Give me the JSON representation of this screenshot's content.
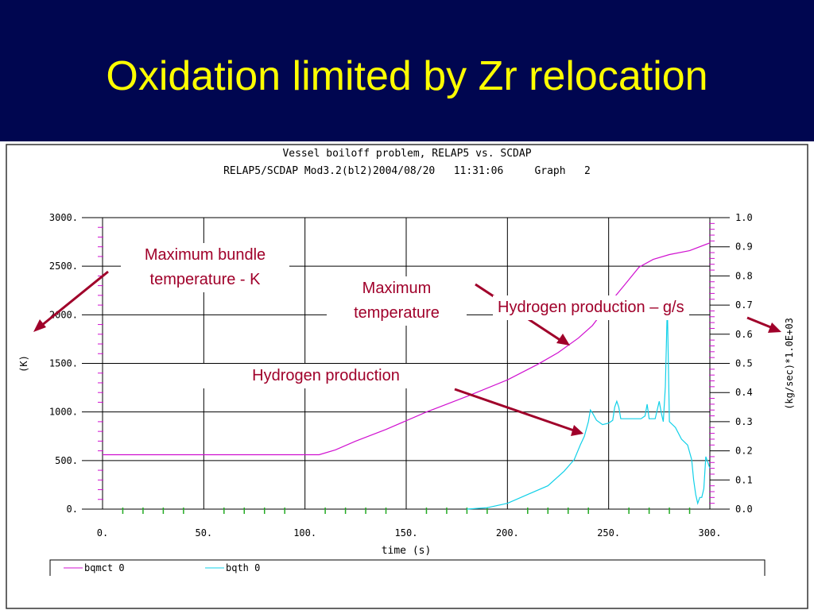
{
  "slide": {
    "title": "Oxidation limited by Zr relocation"
  },
  "chart_data": {
    "type": "line",
    "title": "Vessel boiloff problem, RELAP5 vs. SCDAP",
    "subtitle": "RELAP5/SCDAP Mod3.2(bl2)2004/08/20   11:31:06     Graph   2",
    "xlabel": "time (s)",
    "ylabel_left": "(K)",
    "ylabel_right": "(kg/sec)*1.0E+03",
    "xlim": [
      0,
      300
    ],
    "ylim_left": [
      0,
      3000
    ],
    "ylim_right": [
      0,
      1.0
    ],
    "grid": true,
    "legend_position": "bottom",
    "x_ticks": [
      "0.",
      "50.",
      "100.",
      "150.",
      "200.",
      "250.",
      "300."
    ],
    "y_ticks_left": [
      "3000.",
      "2500.",
      "2000.",
      "1500.",
      "1000.",
      "500.",
      "0."
    ],
    "y_ticks_right": [
      "1.0",
      "0.9",
      "0.8",
      "0.7",
      "0.6",
      "0.5",
      "0.4",
      "0.3",
      "0.2",
      "0.1",
      "0.0"
    ],
    "series": [
      {
        "name": "bqmct 0",
        "axis": "left",
        "color": "#d010d0",
        "x": [
          0,
          50,
          100,
          107,
          115,
          125,
          140,
          160,
          180,
          200,
          215,
          225,
          235,
          242,
          250,
          258,
          265,
          272,
          280,
          290,
          300
        ],
        "y": [
          560,
          560,
          560,
          560,
          610,
          700,
          820,
          1000,
          1160,
          1330,
          1490,
          1610,
          1760,
          1890,
          2110,
          2310,
          2490,
          2570,
          2620,
          2660,
          2740
        ]
      },
      {
        "name": "bqth 0",
        "axis": "right",
        "color": "#10d0e8",
        "x": [
          180,
          190,
          200,
          210,
          220,
          228,
          233,
          236,
          238,
          240,
          241,
          242,
          244,
          247,
          250,
          252,
          253,
          254,
          255,
          256,
          258,
          262,
          266,
          268,
          269,
          270,
          271,
          273,
          275,
          276,
          277,
          278,
          279,
          280,
          283,
          286,
          289,
          291,
          292,
          293,
          294,
          295,
          296,
          297,
          298,
          299,
          300
        ],
        "y": [
          0.0,
          0.005,
          0.02,
          0.05,
          0.08,
          0.13,
          0.17,
          0.22,
          0.25,
          0.3,
          0.34,
          0.33,
          0.305,
          0.29,
          0.295,
          0.305,
          0.35,
          0.37,
          0.35,
          0.31,
          0.31,
          0.31,
          0.31,
          0.32,
          0.36,
          0.31,
          0.31,
          0.31,
          0.37,
          0.33,
          0.3,
          0.42,
          0.7,
          0.3,
          0.28,
          0.24,
          0.22,
          0.17,
          0.1,
          0.05,
          0.02,
          0.04,
          0.04,
          0.07,
          0.18,
          0.16,
          0.14
        ]
      }
    ],
    "annotations": [
      {
        "text": "Maximum bundle temperature - K",
        "color": "#a0002a"
      },
      {
        "text": "Maximum temperature",
        "color": "#a0002a"
      },
      {
        "text": "Hydrogen production – g/s",
        "color": "#a0002a"
      },
      {
        "text": "Hydrogen production",
        "color": "#a0002a"
      }
    ]
  }
}
